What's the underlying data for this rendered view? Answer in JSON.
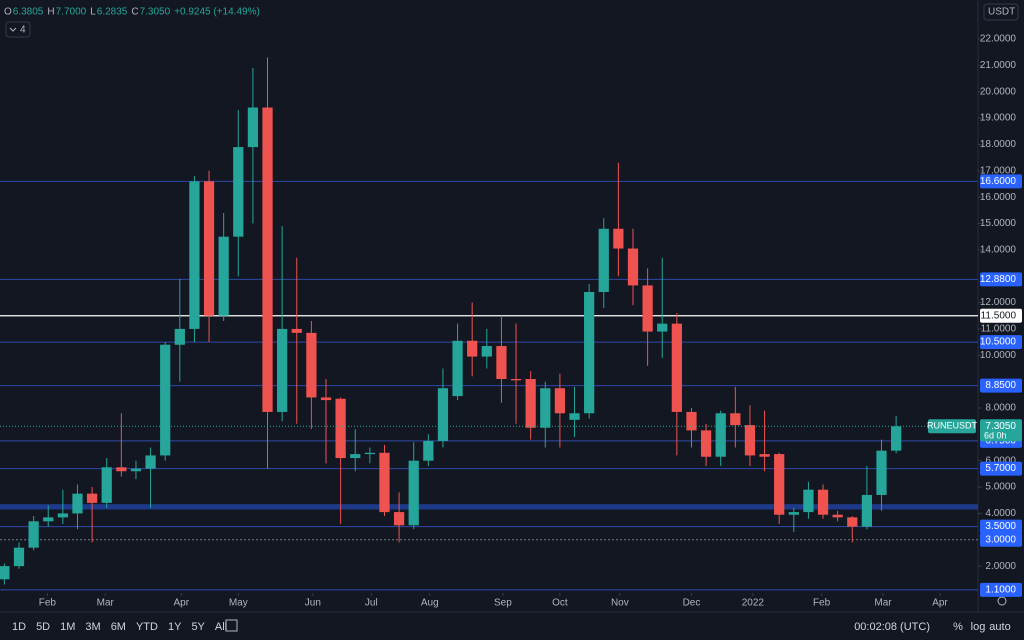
{
  "chart_data": {
    "type": "candlestick",
    "symbol": "RUNEUSDT",
    "currency": "USDT",
    "indicator_count": 4,
    "header": {
      "ohlc": [
        {
          "label": "O",
          "value": "6.3805"
        },
        {
          "label": "H",
          "value": "7.7000"
        },
        {
          "label": "L",
          "value": "6.2835"
        },
        {
          "label": "C",
          "value": "7.3050"
        }
      ],
      "change": "+0.9245 (+14.49%)"
    },
    "open": [
      1.5,
      2.0,
      2.7,
      3.7,
      3.85,
      4.0,
      4.75,
      4.4,
      5.75,
      5.6,
      5.7,
      6.2,
      10.4,
      11.0,
      16.6,
      11.5,
      14.5,
      17.9,
      19.4,
      7.85,
      11.0,
      10.85,
      8.4,
      8.35,
      6.1,
      6.25,
      6.3,
      4.05,
      3.55,
      6.0,
      6.75,
      8.45,
      10.55,
      9.95,
      10.35,
      9.1,
      9.1,
      7.25,
      8.75,
      7.55,
      7.8,
      12.4,
      14.8,
      14.05,
      12.65,
      10.9,
      11.2,
      7.85,
      7.15,
      6.15,
      7.8,
      7.35,
      6.25,
      6.25,
      3.95,
      4.05,
      4.9,
      3.95,
      3.85,
      3.5,
      4.7,
      6.3805
    ],
    "high": [
      2.1,
      2.9,
      3.9,
      4.3,
      4.9,
      5.1,
      5.0,
      6.1,
      7.8,
      6.0,
      6.5,
      10.5,
      12.9,
      16.8,
      17.0,
      15.4,
      19.3,
      20.9,
      21.3,
      14.9,
      13.7,
      11.3,
      9.1,
      8.4,
      7.2,
      6.5,
      6.6,
      4.8,
      6.7,
      7.0,
      9.5,
      11.2,
      12.0,
      11.0,
      11.5,
      11.2,
      9.4,
      9.0,
      9.3,
      8.8,
      12.7,
      15.2,
      17.3,
      14.8,
      13.3,
      13.7,
      11.6,
      8.0,
      7.4,
      7.9,
      8.8,
      8.1,
      7.9,
      6.3,
      4.2,
      5.2,
      5.1,
      4.1,
      3.9,
      5.8,
      6.8,
      7.7
    ],
    "low": [
      1.3,
      1.9,
      2.6,
      3.5,
      3.6,
      3.4,
      2.9,
      4.2,
      5.4,
      5.3,
      4.2,
      6.0,
      9.0,
      10.5,
      10.5,
      11.3,
      13.0,
      15.0,
      5.7,
      7.5,
      7.4,
      7.2,
      5.9,
      3.6,
      5.6,
      5.9,
      3.9,
      2.9,
      3.4,
      5.8,
      6.5,
      8.3,
      9.2,
      9.5,
      8.2,
      7.4,
      6.8,
      6.5,
      6.5,
      6.9,
      7.6,
      11.8,
      13.0,
      11.9,
      9.6,
      9.9,
      6.2,
      6.5,
      5.8,
      5.8,
      6.5,
      5.8,
      5.6,
      3.6,
      3.3,
      3.8,
      3.8,
      3.7,
      2.9,
      3.4,
      4.1,
      6.2835
    ],
    "close": [
      2.0,
      2.7,
      3.7,
      3.85,
      4.0,
      4.75,
      4.4,
      5.75,
      5.6,
      5.7,
      6.2,
      10.4,
      11.0,
      16.6,
      11.5,
      14.5,
      17.9,
      19.4,
      7.85,
      11.0,
      10.85,
      8.4,
      8.3,
      6.1,
      6.25,
      6.3,
      4.05,
      3.55,
      6.0,
      6.75,
      8.75,
      10.55,
      9.95,
      10.35,
      9.1,
      9.05,
      7.25,
      8.75,
      7.8,
      7.8,
      12.4,
      14.8,
      14.05,
      12.65,
      10.9,
      11.2,
      7.85,
      7.15,
      6.15,
      7.8,
      7.35,
      6.2,
      6.15,
      3.95,
      4.05,
      4.9,
      3.95,
      3.85,
      3.5,
      4.7,
      6.3805,
      7.305
    ],
    "up_color": "#26a69a",
    "down_color": "#ef5350",
    "ylim": [
      0.98,
      23.48
    ],
    "yticks": [
      {
        "value": 2,
        "label": "2.0000"
      },
      {
        "value": 4,
        "label": "4.0000"
      },
      {
        "value": 5,
        "label": "5.0000"
      },
      {
        "value": 6,
        "label": "6.0000"
      },
      {
        "value": 8,
        "label": "8.0000"
      },
      {
        "value": 10,
        "label": "10.0000"
      },
      {
        "value": 11,
        "label": "11.0000"
      },
      {
        "value": 12,
        "label": "12.0000"
      },
      {
        "value": 14,
        "label": "14.0000"
      },
      {
        "value": 15,
        "label": "15.0000"
      },
      {
        "value": 16,
        "label": "16.0000"
      },
      {
        "value": 17,
        "label": "17.0000"
      },
      {
        "value": 18,
        "label": "18.0000"
      },
      {
        "value": 19,
        "label": "19.0000"
      },
      {
        "value": 20,
        "label": "20.0000"
      },
      {
        "value": 21,
        "label": "21.0000"
      },
      {
        "value": 22,
        "label": "22.0000"
      }
    ],
    "xticks": [
      {
        "value": 2.94,
        "label": "Feb"
      },
      {
        "value": 6.9,
        "label": "Mar"
      },
      {
        "value": 12.1,
        "label": "Apr"
      },
      {
        "value": 16.0,
        "label": "May"
      },
      {
        "value": 21.1,
        "label": "Jun"
      },
      {
        "value": 25.1,
        "label": "Jul"
      },
      {
        "value": 29.1,
        "label": "Aug"
      },
      {
        "value": 34.1,
        "label": "Sep"
      },
      {
        "value": 38.0,
        "label": "Oct"
      },
      {
        "value": 42.1,
        "label": "Nov"
      },
      {
        "value": 47.0,
        "label": "Dec"
      },
      {
        "value": 51.2,
        "label": "2022"
      },
      {
        "value": 55.9,
        "label": "Feb"
      },
      {
        "value": 60.1,
        "label": "Mar"
      },
      {
        "value": 64.0,
        "label": "Apr"
      }
    ],
    "xlim": [
      -0.3,
      66.6
    ],
    "levels": [
      {
        "value": 16.6,
        "label": "16.6000",
        "color": "#2962ff"
      },
      {
        "value": 12.88,
        "label": "12.8800",
        "color": "#2962ff"
      },
      {
        "value": 11.5,
        "label": "11.5000",
        "color": "#ffffff"
      },
      {
        "value": 10.5,
        "label": "10.5000",
        "color": "#2962ff"
      },
      {
        "value": 8.85,
        "label": "8.8500",
        "color": "#2962ff"
      },
      {
        "value": 6.75,
        "label": "6.7500",
        "color": "#2962ff"
      },
      {
        "value": 5.7,
        "label": "5.7000",
        "color": "#2962ff"
      },
      {
        "value": 3.5,
        "label": "3.5000",
        "color": "#2962ff"
      },
      {
        "value": 3.0,
        "label": "3.0000",
        "color": "#787b86"
      },
      {
        "value": 1.1,
        "label": "1.1000",
        "color": "#2962ff"
      }
    ],
    "zone": [
      4.15,
      4.35
    ],
    "zone_color": "#1e3a8a",
    "current": {
      "value": 7.305,
      "label": "7.3050",
      "countdown": "6d 0h"
    }
  },
  "toolbar": {
    "ranges": [
      "1D",
      "5D",
      "1M",
      "3M",
      "6M",
      "YTD",
      "1Y",
      "5Y",
      "All"
    ],
    "time": "00:02:08 (UTC)",
    "options": [
      "%",
      "log",
      "auto"
    ]
  }
}
